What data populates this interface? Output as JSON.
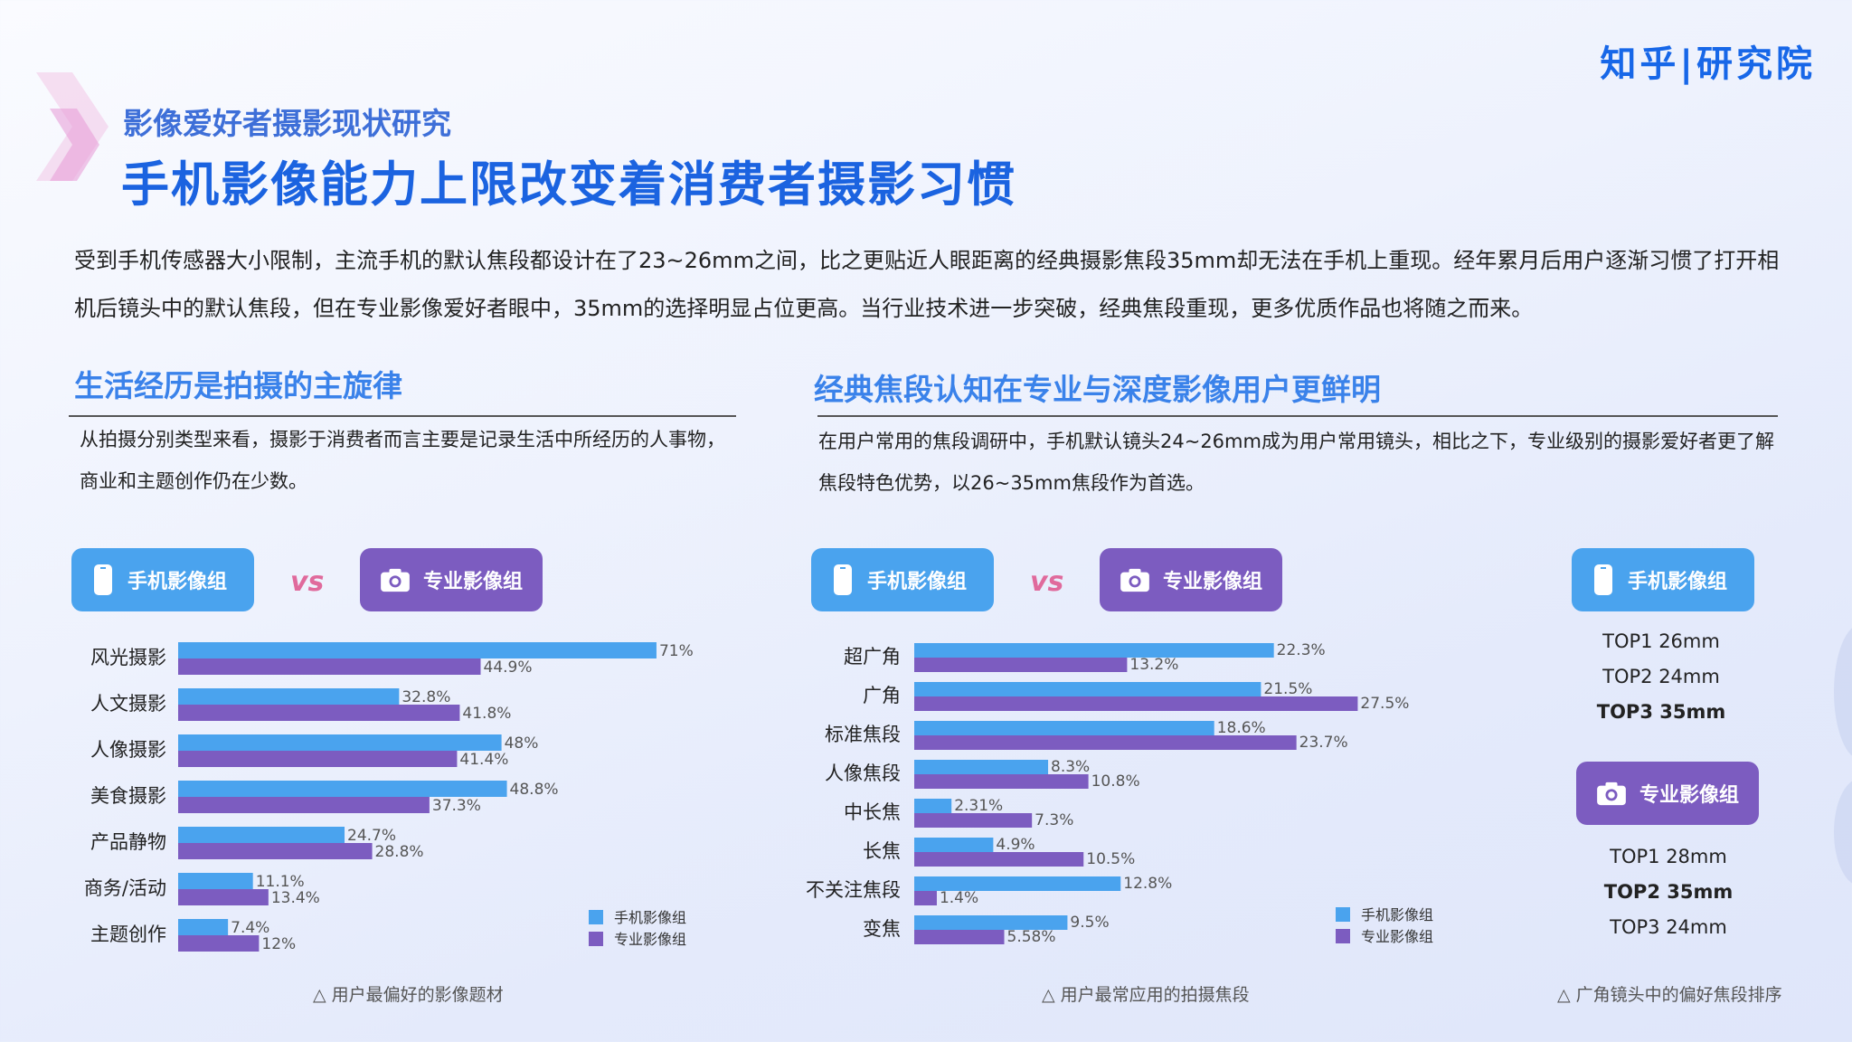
{
  "header": {
    "logo": "知乎|研究院",
    "subtitle": "影像爱好者摄影现状研究",
    "title": "手机影像能力上限改变着消费者摄影习惯",
    "intro": "受到手机传感器大小限制，主流手机的默认焦段都设计在了23~26mm之间，比之更贴近人眼距离的经典摄影焦段35mm却无法在手机上重现。经年累月后用户逐渐习惯了打开相机后镜头中的默认焦段，但在专业影像爱好者眼中，35mm的选择明显占位更高。当行业技术进一步突破，经典焦段重现，更多优质作品也将随之而来。"
  },
  "left": {
    "heading": "生活经历是拍摄的主旋律",
    "desc": "从拍摄分别类型来看，摄影于消费者而言主要是记录生活中所经历的人事物，商业和主题创作仍在少数。",
    "pill_phone": "手机影像组",
    "vs": "vs",
    "pill_pro": "专业影像组",
    "caption": "△ 用户最偏好的影像题材"
  },
  "right": {
    "heading": "经典焦段认知在专业与深度影像用户更鲜明",
    "desc": "在用户常用的焦段调研中，手机默认镜头24~26mm成为用户常用镜头，相比之下，专业级别的摄影爱好者更了解焦段特色优势，以26~35mm焦段作为首选。",
    "pill_phone": "手机影像组",
    "vs": "vs",
    "pill_pro": "专业影像组",
    "caption": "△ 用户最常应用的拍摄焦段"
  },
  "ranking": {
    "phone_pill": "手机影像组",
    "phone_list": [
      "TOP1 26mm",
      "TOP2 24mm",
      "TOP3 35mm"
    ],
    "pro_pill": "专业影像组",
    "pro_list": [
      "TOP1 28mm",
      "TOP2 35mm",
      "TOP3 24mm"
    ],
    "caption": "△ 广角镜头中的偏好焦段排序"
  },
  "colors": {
    "phone": "#4aa3ee",
    "pro": "#7c5cc0",
    "title": "#1b63e0"
  },
  "chart_data": [
    {
      "type": "bar",
      "orientation": "horizontal",
      "categories": [
        "风光摄影",
        "人文摄影",
        "人像摄影",
        "美食摄影",
        "产品静物",
        "商务/活动",
        "主题创作"
      ],
      "series": [
        {
          "name": "手机影像组",
          "values": [
            71,
            32.8,
            48,
            48.8,
            24.7,
            11.1,
            7.4
          ],
          "labels": [
            "71%",
            "32.8%",
            "48%",
            "48.8%",
            "24.7%",
            "11.1%",
            "7.4%"
          ]
        },
        {
          "name": "专业影像组",
          "values": [
            44.9,
            41.8,
            41.4,
            37.3,
            28.8,
            13.4,
            12
          ],
          "labels": [
            "44.9%",
            "41.8%",
            "41.4%",
            "37.3%",
            "28.8%",
            "13.4%",
            "12%"
          ]
        }
      ],
      "xlim": [
        0,
        100
      ],
      "legend": "bottom-right"
    },
    {
      "type": "bar",
      "orientation": "horizontal",
      "categories": [
        "超广角",
        "广角",
        "标准焦段",
        "人像焦段",
        "中长焦",
        "长焦",
        "不关注焦段",
        "变焦"
      ],
      "series": [
        {
          "name": "手机影像组",
          "values": [
            22.3,
            21.5,
            18.6,
            8.3,
            2.31,
            4.9,
            12.8,
            9.5
          ],
          "labels": [
            "22.3%",
            "21.5%",
            "18.6%",
            "8.3%",
            "2.31%",
            "4.9%",
            "12.8%",
            "9.5%"
          ]
        },
        {
          "name": "专业影像组",
          "values": [
            13.2,
            27.5,
            23.7,
            10.8,
            7.3,
            10.5,
            1.4,
            5.58
          ],
          "labels": [
            "13.2%",
            "27.5%",
            "23.7%",
            "10.8%",
            "7.3%",
            "10.5%",
            "1.4%",
            "5.58%"
          ]
        }
      ],
      "xlim": [
        0,
        30
      ],
      "legend": "bottom-right"
    }
  ]
}
